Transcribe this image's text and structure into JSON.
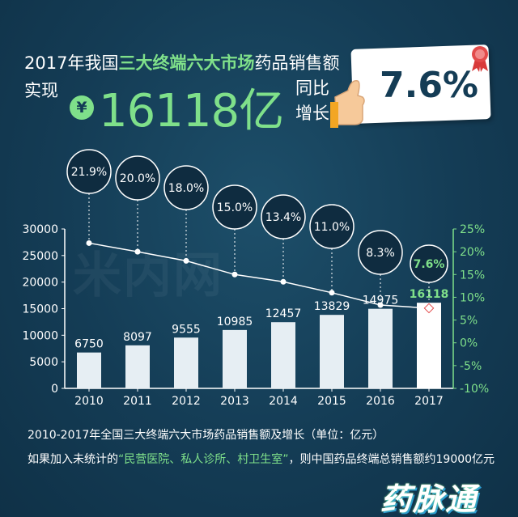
{
  "header": {
    "line1_prefix": "2017年我国",
    "line1_highlight": "三大终端六大市场",
    "line1_suffix": "药品销售额",
    "shixian": "实现",
    "yen_symbol": "¥",
    "big_value": "16118亿",
    "tongbi": "同比",
    "zengzhang": "增长",
    "growth_value": "7.6%"
  },
  "watermark": "米内网",
  "captions": {
    "caption1": "2010-2017年全国三大终端六大市场药品销售额及增长（单位：亿元）",
    "caption2_prefix": "如果加入未统计的",
    "caption2_highlight": "“民营医院、私人诊所、村卫生室”",
    "caption2_suffix": "，则中国药品终端总销售额约19000亿元"
  },
  "brand": "药脉通",
  "colors": {
    "background": "#143c55",
    "accent_green": "#7fe08a",
    "bar_fill": "#e6eef3",
    "bar_highlight": "#ffffff",
    "line": "#ffffff"
  },
  "chart_data": {
    "type": "bar",
    "categories": [
      "2010",
      "2011",
      "2012",
      "2013",
      "2014",
      "2015",
      "2016",
      "2017"
    ],
    "series": [
      {
        "values": [
          6750,
          8097,
          9555,
          10985,
          12457,
          13829,
          14975,
          16118
        ],
        "axis": "left"
      },
      {
        "type": "line",
        "values": [
          21.9,
          20.0,
          18.0,
          15.0,
          13.4,
          11.0,
          8.3,
          7.6
        ],
        "axis": "right"
      }
    ],
    "bar_labels": [
      "6750",
      "8097",
      "9555",
      "10985",
      "12457",
      "13829",
      "14975",
      "16118"
    ],
    "growth_labels": [
      "21.9%",
      "20.0%",
      "18.0%",
      "15.0%",
      "13.4%",
      "11.0%",
      "8.3%",
      "7.6%"
    ],
    "y_left_ticks": [
      "0",
      "5000",
      "10000",
      "15000",
      "20000",
      "25000",
      "30000"
    ],
    "y_right_ticks": [
      "-10%",
      "-5%",
      "0%",
      "5%",
      "10%",
      "15%",
      "20%",
      "25%"
    ],
    "ylim_left": [
      0,
      30000
    ],
    "ylim_right": [
      -10,
      25
    ],
    "highlight_index": 7,
    "grid": false
  }
}
